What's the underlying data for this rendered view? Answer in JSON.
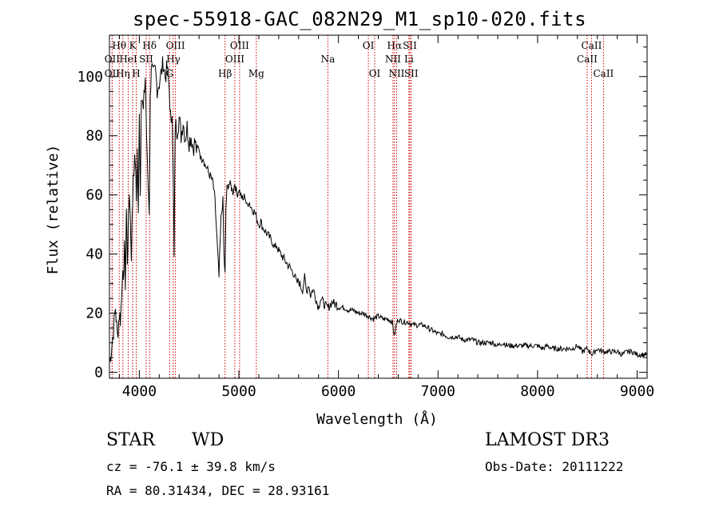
{
  "title": "spec-55918-GAC_082N29_M1_sp10-020.fits",
  "footer": {
    "class_label": "STAR",
    "subclass_label": "WD",
    "survey": "LAMOST DR3",
    "cz": "cz = -76.1 ± 39.8 km/s",
    "obs_date": "Obs-Date: 20111222",
    "coords": "RA =  80.31434, DEC =  28.93161"
  },
  "chart_data": {
    "type": "line",
    "title": "spec-55918-GAC_082N29_M1_sp10-020.fits",
    "xlabel": "Wavelength (Å)",
    "ylabel": "Flux (relative)",
    "xlim": [
      3700,
      9100
    ],
    "ylim": [
      -2,
      114
    ],
    "xticks": [
      4000,
      5000,
      6000,
      7000,
      8000,
      9000
    ],
    "yticks": [
      0,
      20,
      40,
      60,
      80,
      100
    ],
    "grid": false,
    "line_color": "#000000",
    "marker_color": "#cc0000",
    "spectrum_x": [
      3700,
      3720,
      3740,
      3760,
      3780,
      3800,
      3810,
      3820,
      3830,
      3840,
      3850,
      3860,
      3870,
      3880,
      3890,
      3900,
      3920,
      3940,
      3960,
      3970,
      3980,
      3990,
      4000,
      4010,
      4020,
      4040,
      4060,
      4080,
      4100,
      4110,
      4120,
      4140,
      4160,
      4180,
      4200,
      4220,
      4240,
      4260,
      4280,
      4300,
      4320,
      4330,
      4340,
      4350,
      4360,
      4380,
      4400,
      4420,
      4440,
      4460,
      4480,
      4500,
      4520,
      4540,
      4560,
      4580,
      4600,
      4620,
      4640,
      4660,
      4680,
      4700,
      4720,
      4740,
      4760,
      4780,
      4800,
      4820,
      4840,
      4850,
      4861,
      4870,
      4880,
      4900,
      4920,
      4940,
      4960,
      4980,
      5000,
      5020,
      5040,
      5060,
      5080,
      5100,
      5120,
      5140,
      5160,
      5180,
      5200,
      5220,
      5240,
      5260,
      5280,
      5300,
      5320,
      5340,
      5360,
      5380,
      5400,
      5420,
      5440,
      5460,
      5480,
      5500,
      5520,
      5540,
      5560,
      5580,
      5600,
      5620,
      5640,
      5660,
      5680,
      5700,
      5720,
      5740,
      5760,
      5780,
      5800,
      5820,
      5840,
      5860,
      5880,
      5900,
      5920,
      5940,
      5960,
      5980,
      6000,
      6050,
      6100,
      6150,
      6200,
      6250,
      6300,
      6350,
      6400,
      6450,
      6500,
      6540,
      6563,
      6580,
      6600,
      6650,
      6700,
      6750,
      6800,
      6850,
      6900,
      6950,
      7000,
      7050,
      7100,
      7150,
      7200,
      7250,
      7300,
      7350,
      7400,
      7450,
      7500,
      7550,
      7600,
      7650,
      7700,
      7750,
      7800,
      7850,
      7900,
      7950,
      8000,
      8050,
      8100,
      8150,
      8200,
      8250,
      8300,
      8350,
      8400,
      8450,
      8500,
      8550,
      8600,
      8650,
      8700,
      8750,
      8800,
      8850,
      8900,
      8950,
      9000,
      9050,
      9100
    ],
    "spectrum_y": [
      3,
      8,
      14,
      22,
      12,
      20,
      18,
      24,
      35,
      28,
      45,
      30,
      55,
      38,
      50,
      62,
      40,
      68,
      72,
      58,
      75,
      52,
      90,
      60,
      95,
      88,
      100,
      70,
      55,
      92,
      104,
      100,
      102,
      96,
      98,
      101,
      105,
      100,
      103,
      96,
      82,
      90,
      65,
      38,
      84,
      82,
      86,
      80,
      85,
      79,
      83,
      78,
      80,
      76,
      78,
      74,
      76,
      72,
      73,
      70,
      69,
      67,
      66,
      64,
      58,
      45,
      32,
      52,
      58,
      40,
      33,
      55,
      62,
      64,
      63,
      61,
      64,
      60,
      62,
      60,
      58,
      60,
      56,
      58,
      56,
      55,
      54,
      52,
      50,
      51,
      49,
      48,
      47,
      46,
      45,
      44,
      42,
      43,
      41,
      40,
      39,
      38,
      37,
      36,
      35,
      34,
      33,
      30,
      31,
      29,
      28,
      32,
      27,
      30,
      26,
      28,
      27,
      24,
      22,
      25,
      24,
      23,
      22,
      22,
      23,
      24,
      23,
      23,
      22,
      22,
      21,
      21,
      20,
      20,
      19,
      18,
      19,
      18,
      18,
      17,
      12,
      16,
      18,
      17,
      17,
      16,
      16,
      16,
      15,
      14,
      13,
      13,
      12,
      12,
      12,
      11,
      11,
      11,
      10,
      10,
      10,
      10,
      9,
      10,
      9,
      9,
      9,
      9,
      9,
      9,
      9,
      8,
      9,
      8,
      8,
      8,
      8,
      8,
      9,
      7,
      8,
      6,
      8,
      7,
      7,
      7,
      7,
      6,
      7,
      7,
      6,
      6,
      6
    ],
    "lines": [
      {
        "label": "Hθ",
        "wl": 3798,
        "row": 1
      },
      {
        "label": "OII",
        "wl": 3727,
        "row": 2
      },
      {
        "label": "OII",
        "wl": 3727,
        "row": 3
      },
      {
        "label": "HeI",
        "wl": 3889,
        "row": 2
      },
      {
        "label": "Hη",
        "wl": 3835,
        "row": 3
      },
      {
        "label": "K",
        "wl": 3934,
        "row": 1
      },
      {
        "label": "SII",
        "wl": 4069,
        "row": 2
      },
      {
        "label": "H",
        "wl": 3969,
        "row": 3
      },
      {
        "label": "Hδ",
        "wl": 4102,
        "row": 1
      },
      {
        "label": "OIII",
        "wl": 4363,
        "row": 1
      },
      {
        "label": "Hγ",
        "wl": 4341,
        "row": 2
      },
      {
        "label": "G",
        "wl": 4305,
        "row": 3
      },
      {
        "label": "Hβ",
        "wl": 4861,
        "row": 3
      },
      {
        "label": "OIII",
        "wl": 5007,
        "row": 1
      },
      {
        "label": "OIII",
        "wl": 4959,
        "row": 2
      },
      {
        "label": "Mg",
        "wl": 5175,
        "row": 3
      },
      {
        "label": "Na",
        "wl": 5894,
        "row": 2
      },
      {
        "label": "OI",
        "wl": 6300,
        "row": 1
      },
      {
        "label": "OI",
        "wl": 6364,
        "row": 3
      },
      {
        "label": "Hα",
        "wl": 6563,
        "row": 1
      },
      {
        "label": "NII",
        "wl": 6548,
        "row": 2
      },
      {
        "label": "NII",
        "wl": 6584,
        "row": 3
      },
      {
        "label": "SII",
        "wl": 6717,
        "row": 1
      },
      {
        "label": "Li",
        "wl": 6708,
        "row": 2
      },
      {
        "label": "SII",
        "wl": 6731,
        "row": 3
      },
      {
        "label": "CaII",
        "wl": 8542,
        "row": 1
      },
      {
        "label": "CaII",
        "wl": 8498,
        "row": 2
      },
      {
        "label": "CaII",
        "wl": 8662,
        "row": 3
      }
    ]
  }
}
